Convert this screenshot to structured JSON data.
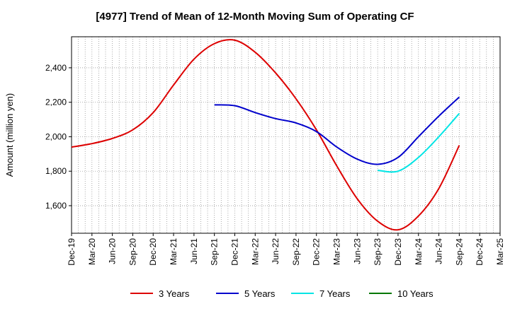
{
  "chart_data": {
    "type": "line",
    "title": "[4977]  Trend of Mean of 12-Month Moving Sum of Operating CF",
    "xlabel": "",
    "ylabel": "Amount (million yen)",
    "ylim": [
      1440,
      2580
    ],
    "yticks": [
      1600,
      1800,
      2000,
      2200,
      2400
    ],
    "ytick_labels": [
      "1,600",
      "1,800",
      "2,000",
      "2,200",
      "2,400"
    ],
    "x_start": "Dec-19",
    "x_months_total": 63,
    "xtick_labels": [
      "Dec-19",
      "Mar-20",
      "Jun-20",
      "Sep-20",
      "Dec-20",
      "Mar-21",
      "Jun-21",
      "Sep-21",
      "Dec-21",
      "Mar-22",
      "Jun-22",
      "Sep-22",
      "Dec-22",
      "Mar-23",
      "Jun-23",
      "Sep-23",
      "Dec-23",
      "Mar-24",
      "Jun-24",
      "Sep-24",
      "Dec-24",
      "Mar-25"
    ],
    "grid": true,
    "legend_position": "bottom",
    "series": [
      {
        "name": "3 Years",
        "color": "#dd0000",
        "x_month_index": [
          0,
          3,
          6,
          9,
          12,
          15,
          18,
          21,
          24,
          27,
          30,
          33,
          36,
          39,
          42,
          45,
          48,
          51,
          54,
          57
        ],
        "values": [
          1940,
          1960,
          1990,
          2040,
          2140,
          2300,
          2450,
          2540,
          2560,
          2490,
          2370,
          2220,
          2040,
          1830,
          1640,
          1510,
          1460,
          1540,
          1700,
          1950
        ]
      },
      {
        "name": "5 Years",
        "color": "#0000cc",
        "x_month_index": [
          21,
          24,
          27,
          30,
          33,
          36,
          39,
          42,
          45,
          48,
          51,
          54,
          57
        ],
        "values": [
          2185,
          2180,
          2140,
          2105,
          2080,
          2030,
          1940,
          1870,
          1840,
          1880,
          2000,
          2120,
          2230
        ]
      },
      {
        "name": "7 Years",
        "color": "#00e5e5",
        "x_month_index": [
          45,
          48,
          51,
          54,
          57
        ],
        "values": [
          1805,
          1800,
          1880,
          2000,
          2135
        ]
      },
      {
        "name": "10 Years",
        "color": "#007700",
        "x_month_index": [],
        "values": []
      }
    ]
  }
}
